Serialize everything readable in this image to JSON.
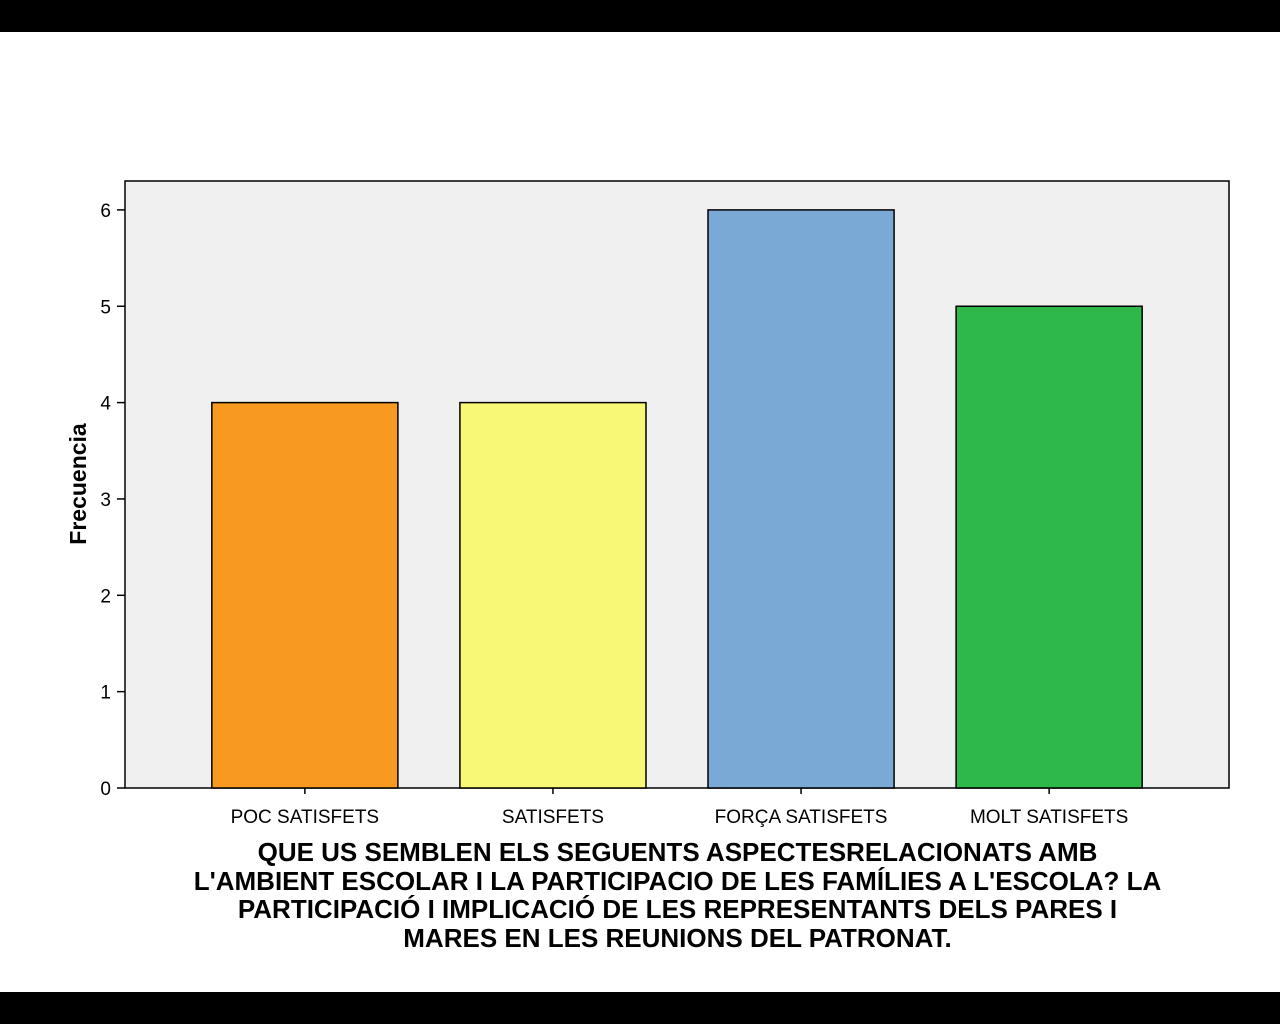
{
  "chart_data": {
    "type": "bar",
    "categories": [
      "POC SATISFETS",
      "SATISFETS",
      "FORÇA SATISFETS",
      "MOLT SATISFETS"
    ],
    "values": [
      4,
      4,
      6,
      5
    ],
    "colors": [
      "#f99a20",
      "#f9f776",
      "#7ba9d6",
      "#2fb84a"
    ],
    "ylabel": "Frecuencia",
    "xlabel_lines": [
      "QUE US SEMBLEN ELS SEGUENTS ASPECTESRELACIONATS AMB",
      "L'AMBIENT ESCOLAR I LA PARTICIPACIO DE LES FAMÍLIES A L'ESCOLA? LA",
      "PARTICIPACIÓ I IMPLICACIÓ DE LES REPRESENTANTS DELS PARES I",
      "MARES EN LES REUNIONS DEL PATRONAT."
    ],
    "yticks": [
      0,
      1,
      2,
      3,
      4,
      5,
      6
    ],
    "ylim": [
      0,
      6.3
    ],
    "grid": false,
    "plot_background": "#f0f0f0"
  }
}
